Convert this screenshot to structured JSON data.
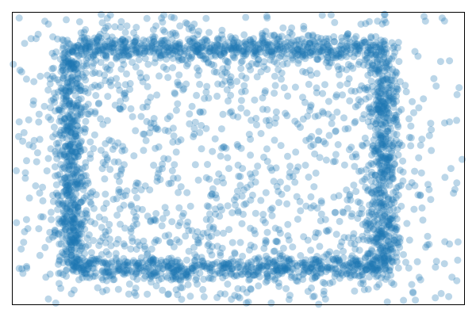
{
  "chart_data": {
    "type": "scatter",
    "title": "",
    "xlabel": "",
    "ylabel": "",
    "xlim": [
      -1.55,
      1.55
    ],
    "ylim": [
      -1.2,
      1.2
    ],
    "grid": false,
    "axis_ticks": false,
    "color": "#1f77b4",
    "point_alpha": 0.3,
    "description_of_structure": null,
    "rectangle_outline": {
      "x_left": -1.15,
      "x_right": 1.0,
      "y_bottom": -0.9,
      "y_top": 0.9
    },
    "series": [
      {
        "points": [
          [
            -1.5,
            1.15
          ],
          [
            -1.3,
            1.1
          ],
          [
            -0.8,
            1.12
          ],
          [
            -0.3,
            1.1
          ],
          [
            0.2,
            1.15
          ],
          [
            0.9,
            1.12
          ],
          [
            1.4,
            1.15
          ],
          [
            1.45,
            0.8
          ],
          [
            -1.45,
            0.65
          ],
          [
            -1.5,
            0.3
          ],
          [
            -1.52,
            -0.1
          ],
          [
            -1.45,
            -0.5
          ],
          [
            -1.5,
            -0.9
          ],
          [
            1.45,
            0.3
          ],
          [
            1.5,
            -0.2
          ],
          [
            1.45,
            -0.7
          ],
          [
            -1.3,
            -1.15
          ],
          [
            -0.7,
            -1.12
          ],
          [
            0.0,
            -1.13
          ],
          [
            0.6,
            -1.15
          ],
          [
            1.2,
            -1.1
          ],
          [
            1.5,
            -1.0
          ],
          [
            -1.25,
            0.5
          ],
          [
            -1.3,
            0.0
          ],
          [
            -1.28,
            -0.5
          ],
          [
            -1.2,
            0.9
          ],
          [
            -1.2,
            -0.95
          ],
          [
            1.1,
            0.95
          ],
          [
            1.12,
            0.4
          ],
          [
            1.1,
            -0.3
          ],
          [
            1.15,
            -0.85
          ],
          [
            -0.9,
            1.0
          ],
          [
            -0.3,
            0.98
          ],
          [
            0.3,
            1.0
          ],
          [
            0.8,
            0.98
          ],
          [
            -0.9,
            -1.0
          ],
          [
            -0.2,
            -0.98
          ],
          [
            0.4,
            -1.0
          ],
          [
            0.9,
            -0.97
          ],
          [
            -0.6,
            0.5
          ],
          [
            -0.3,
            0.2
          ],
          [
            0.0,
            0.1
          ],
          [
            0.2,
            0.4
          ],
          [
            0.5,
            0.1
          ],
          [
            -0.5,
            -0.4
          ],
          [
            0.1,
            -0.3
          ],
          [
            0.6,
            -0.5
          ],
          [
            -0.8,
            -0.1
          ],
          [
            0.7,
            0.6
          ],
          [
            -0.2,
            -0.7
          ],
          [
            0.3,
            0.7
          ],
          [
            -0.7,
            0.75
          ],
          [
            0.8,
            -0.7
          ],
          [
            -0.4,
            0.6
          ],
          [
            0.4,
            -0.1
          ],
          [
            -0.1,
            -0.2
          ],
          [
            0.25,
            0.15
          ],
          [
            -0.65,
            0.2
          ],
          [
            0.55,
            0.35
          ],
          [
            -0.35,
            -0.55
          ],
          [
            0.05,
            0.55
          ]
        ]
      }
    ]
  }
}
